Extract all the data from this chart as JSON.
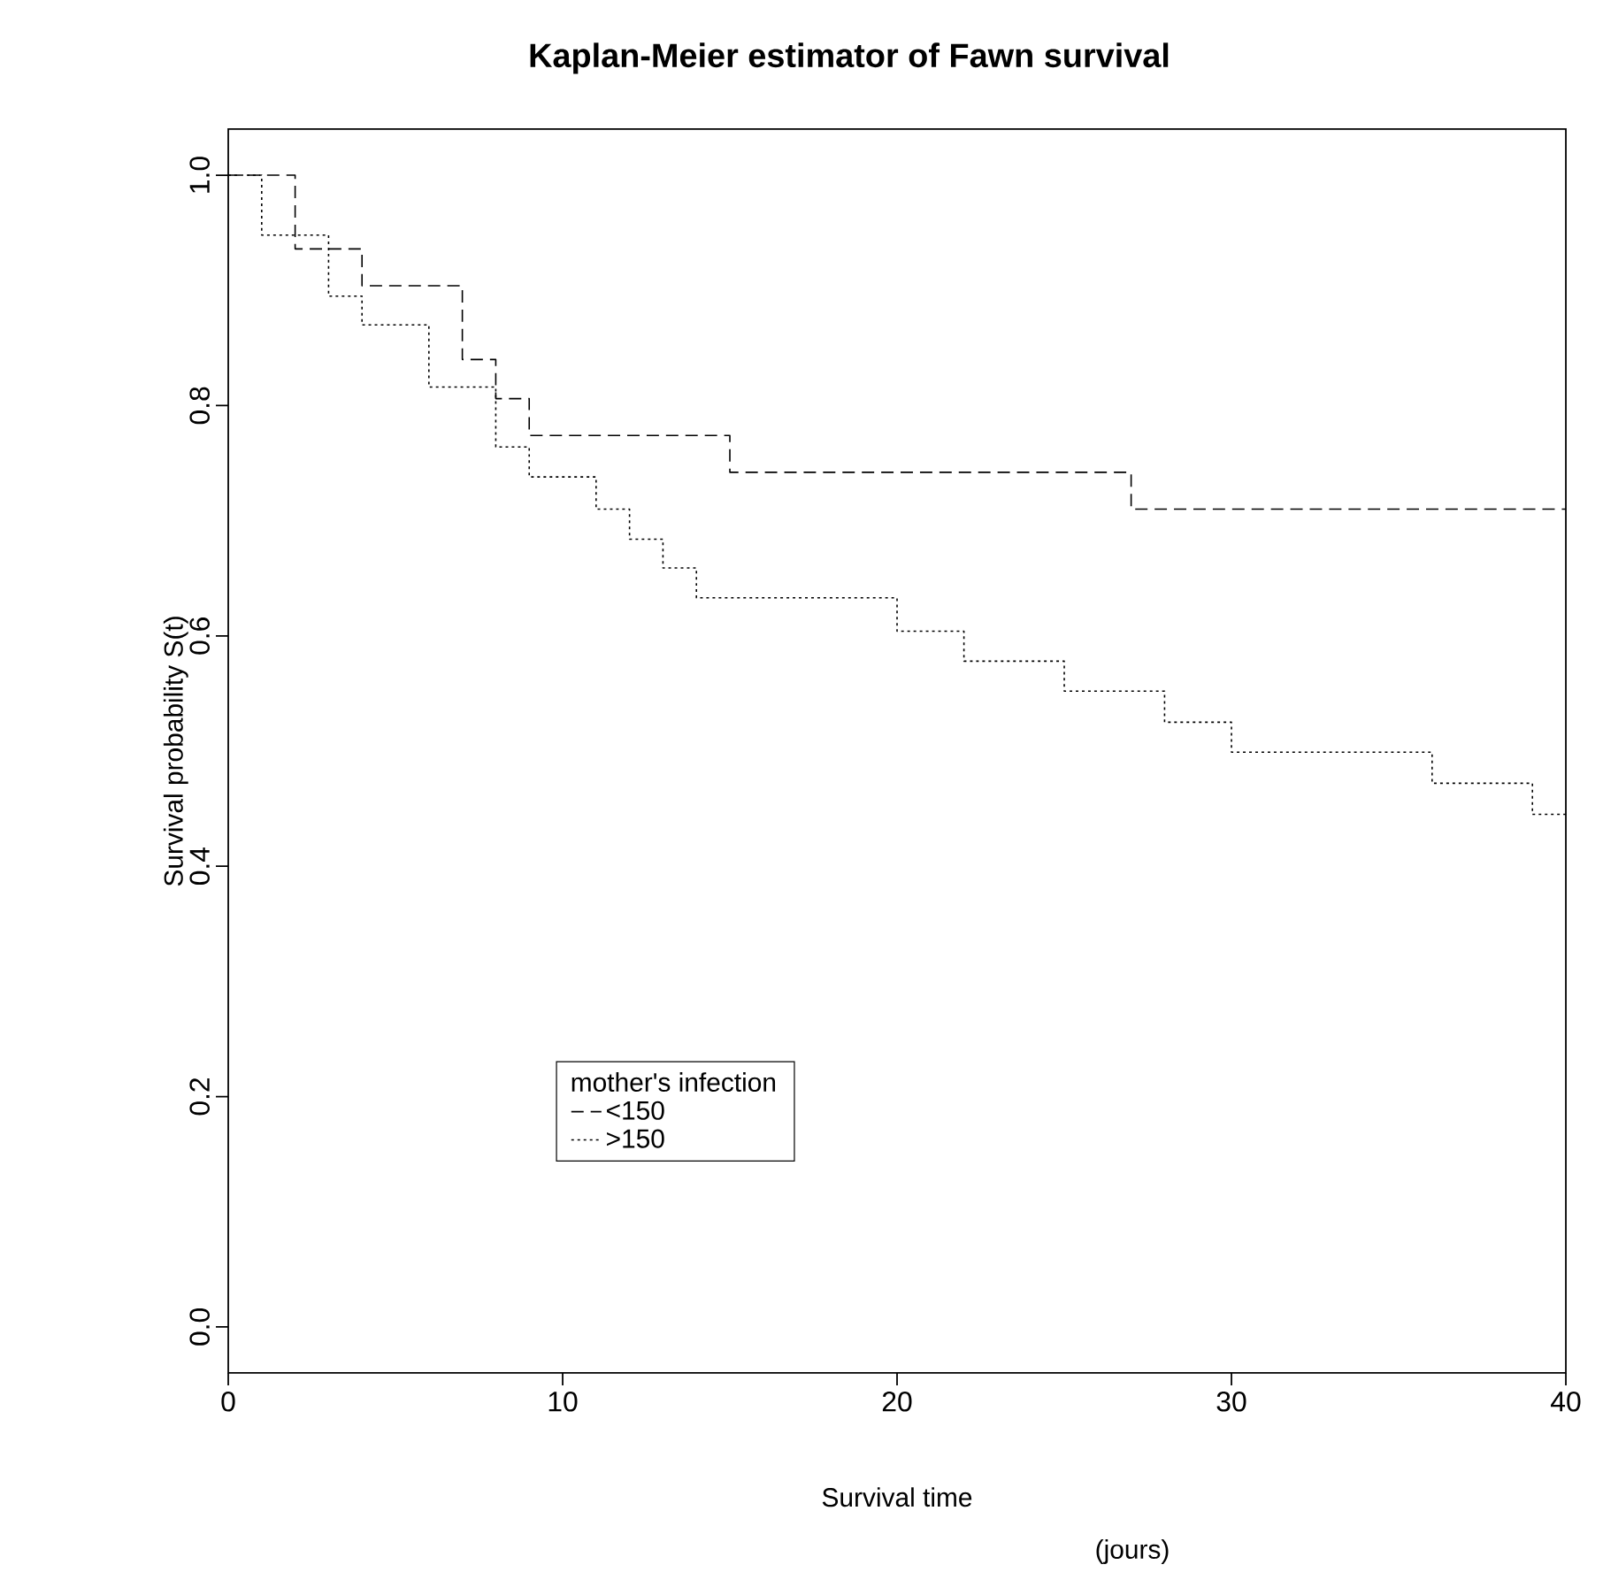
{
  "chart_data": {
    "type": "step",
    "title": "Kaplan-Meier estimator of Fawn survival",
    "xlabel": "Survival time",
    "ylabel": "Survival probability S(t)",
    "legend_title": "mother's infection",
    "legend": "bottom left",
    "annotations": [
      "(jours)"
    ],
    "xlim": [
      0,
      40
    ],
    "ylim": [
      -0.04,
      1.04
    ],
    "xticks": [
      0,
      10,
      20,
      30,
      40
    ],
    "yticks": [
      {
        "value": 0,
        "label": "0.0"
      },
      0.2,
      0.4,
      0.6,
      0.8,
      {
        "value": 1,
        "label": "1.0"
      }
    ],
    "grid": false,
    "series": [
      {
        "name": "<150",
        "color": "#000000",
        "line_style": "dashed",
        "x": [
          0,
          2,
          4,
          7,
          8,
          9,
          15,
          27,
          40
        ],
        "values": [
          1.0,
          0.936,
          0.904,
          0.84,
          0.806,
          0.774,
          0.742,
          0.71,
          0.71
        ]
      },
      {
        "name": ">150",
        "color": "#000000",
        "line_style": "dotted",
        "x": [
          0,
          1,
          3,
          4,
          6,
          8,
          9,
          11,
          12,
          13,
          14,
          20,
          22,
          25,
          28,
          30,
          36,
          39,
          40
        ],
        "values": [
          1.0,
          0.948,
          0.895,
          0.87,
          0.816,
          0.764,
          0.738,
          0.71,
          0.684,
          0.659,
          0.633,
          0.604,
          0.578,
          0.552,
          0.525,
          0.499,
          0.472,
          0.445,
          0.445
        ]
      }
    ]
  }
}
